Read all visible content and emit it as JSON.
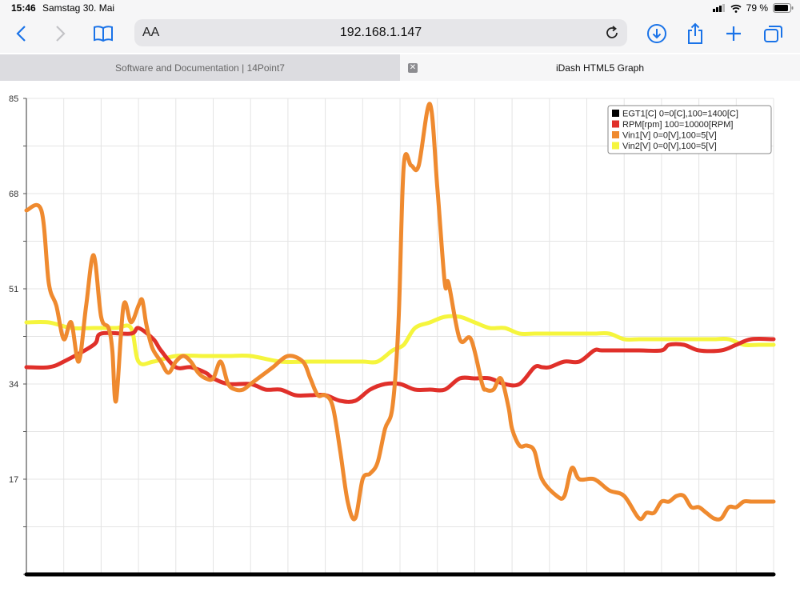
{
  "status": {
    "time": "15:46",
    "date": "Samstag 30. Mai",
    "battery": "79 %"
  },
  "browser": {
    "url": "192.168.1.147",
    "reader_label": "AA",
    "tabs": [
      {
        "label": "Software and Documentation | 14Point7"
      },
      {
        "label": "iDash HTML5 Graph"
      }
    ]
  },
  "colors": {
    "EGT1": "#000000",
    "RPM": "#e0302a",
    "Vin1": "#ef8a2f",
    "Vin2": "#f5f53d"
  },
  "chart_data": {
    "type": "line",
    "ylim": [
      0,
      85
    ],
    "yticks": [
      17,
      34,
      51,
      68,
      85
    ],
    "xlim": [
      0,
      100
    ],
    "grid": true,
    "legend_position": "top-right",
    "series": [
      {
        "name": "EGT1[C] 0=0[C],100=1400[C]",
        "key": "EGT1",
        "x": [
          0,
          100
        ],
        "y": [
          0,
          0
        ]
      },
      {
        "name": "RPM[rpm] 100=10000[RPM]",
        "key": "RPM",
        "x": [
          0,
          3,
          5,
          9,
          10,
          14,
          15,
          17,
          18,
          20,
          22,
          24,
          25,
          27,
          30,
          32,
          34,
          36,
          38,
          40,
          42,
          44,
          46,
          48,
          50,
          52,
          54,
          56,
          58,
          60,
          62,
          64,
          66,
          68,
          69,
          70,
          72,
          74,
          76,
          77,
          80,
          82,
          85,
          86,
          88,
          90,
          93,
          95,
          97,
          100
        ],
        "y": [
          37,
          37,
          38,
          41,
          43,
          43,
          44,
          42,
          40,
          37,
          37,
          36,
          35,
          34,
          34,
          33,
          33,
          32,
          32,
          32,
          31,
          31,
          33,
          34,
          34,
          33,
          33,
          33,
          35,
          35,
          35,
          34,
          34,
          37,
          37,
          37,
          38,
          38,
          40,
          40,
          40,
          40,
          40,
          41,
          41,
          40,
          40,
          41,
          42,
          42
        ]
      },
      {
        "name": "Vin1[V] 0=0[V],100=5[V]",
        "key": "Vin1",
        "x": [
          0,
          2,
          3,
          4,
          5,
          6,
          7,
          8,
          9,
          10,
          11,
          11.5,
          12,
          13,
          14,
          15,
          15.5,
          16,
          16.5,
          17,
          18,
          19,
          20,
          21,
          22,
          23,
          24,
          25,
          26,
          27,
          28,
          29,
          30,
          31,
          32,
          33,
          35,
          37,
          38,
          39,
          40,
          41,
          42,
          43,
          44,
          45,
          46,
          47,
          48,
          49,
          49.8,
          50.5,
          51.5,
          52.5,
          54,
          55,
          56,
          56.5,
          58,
          59.5,
          61,
          61.5,
          62.5,
          63.5,
          64.5,
          65,
          66,
          67,
          68,
          69,
          71,
          72,
          73,
          74,
          76,
          78,
          80,
          82,
          83,
          84,
          85,
          86,
          87,
          88,
          89,
          90,
          91,
          92,
          93,
          94,
          95,
          96,
          97,
          98,
          100
        ],
        "y": [
          65,
          65,
          52,
          48,
          42,
          45,
          38,
          48,
          57,
          46,
          44,
          40,
          31,
          48,
          45,
          48,
          49,
          45,
          42,
          40,
          38,
          36,
          38,
          39,
          38,
          36,
          35,
          35,
          38,
          34,
          33,
          33,
          34,
          35,
          36,
          37,
          39,
          38,
          35,
          32,
          32,
          30,
          22,
          13,
          10,
          17,
          18,
          20,
          26,
          30,
          45,
          73,
          73,
          73,
          84,
          69,
          52,
          52,
          42,
          42,
          34,
          33,
          33,
          35,
          30,
          26,
          23,
          23,
          22,
          17,
          14,
          14,
          19,
          17,
          17,
          15,
          14,
          10,
          11,
          11,
          13,
          13,
          14,
          14,
          12,
          12,
          11,
          10,
          10,
          12,
          12,
          13,
          13,
          13,
          13
        ]
      },
      {
        "name": "Vin2[V] 0=0[V],100=5[V]",
        "key": "Vin2",
        "x": [
          0,
          3,
          6,
          9,
          12,
          14,
          15,
          17,
          20,
          24,
          27,
          30,
          34,
          38,
          42,
          45,
          47,
          49,
          50.5,
          52,
          54,
          56,
          58,
          60,
          62,
          64,
          66,
          68,
          70,
          72,
          74,
          76,
          78,
          80,
          82,
          84,
          86,
          88,
          90,
          92,
          94,
          96,
          98,
          100
        ],
        "y": [
          45,
          45,
          44,
          44,
          44,
          44,
          38,
          38,
          39,
          39,
          39,
          39,
          38,
          38,
          38,
          38,
          38,
          40,
          41,
          44,
          45,
          46,
          46,
          45,
          44,
          44,
          43,
          43,
          43,
          43,
          43,
          43,
          43,
          42,
          42,
          42,
          42,
          42,
          42,
          42,
          42,
          41,
          41,
          41
        ]
      }
    ]
  }
}
